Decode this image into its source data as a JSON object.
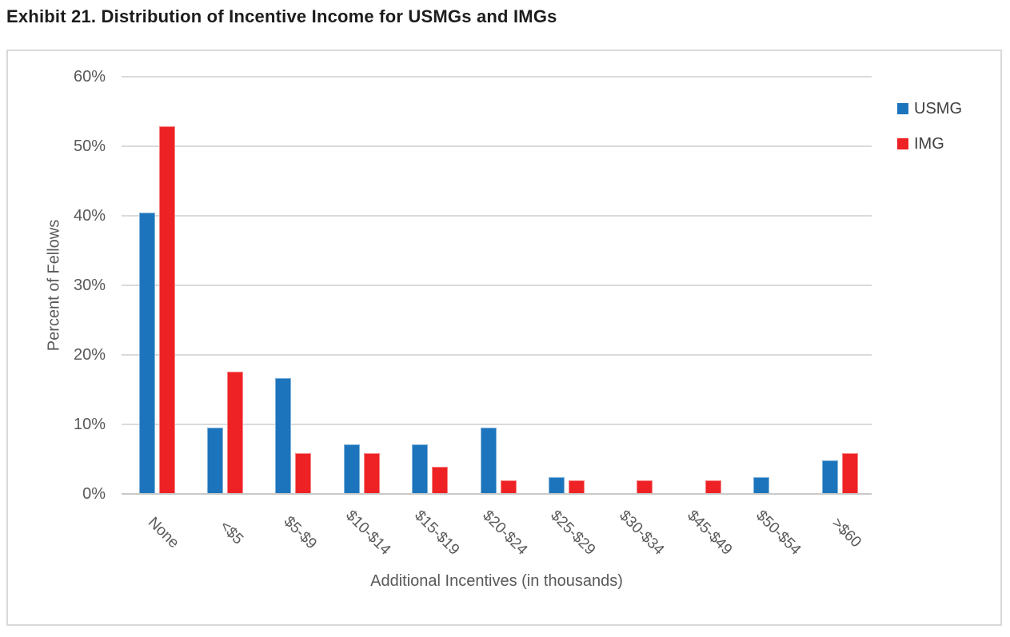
{
  "title": "Exhibit 21. Distribution of Incentive Income for USMGs and IMGs",
  "colors": {
    "usmg_blue": "#1C75BC",
    "img_red": "#EE2224",
    "gridline": "#DADADA",
    "axis_line": "#C9C9C9",
    "axis_text": "#595959",
    "legend_text": "#404040",
    "title_text": "#1D1D1F",
    "chart_border": "#D9D9D9",
    "background": "#FFFFFF"
  },
  "chart_data": {
    "type": "bar",
    "title": "Exhibit 21. Distribution of Incentive Income for USMGs and IMGs",
    "xlabel": "Additional Incentives (in thousands)",
    "ylabel": "Percent of Fellows",
    "categories": [
      "None",
      "<$5",
      "$5-$9",
      "$10-$14",
      "$15-$19",
      "$20-$24",
      "$25-$29",
      "$30-$34",
      "$45-$49",
      "$50-$54",
      ">$60"
    ],
    "series": [
      {
        "name": "USMG",
        "color": "#1C75BC",
        "values": [
          40.5,
          9.5,
          16.7,
          7.1,
          7.1,
          9.5,
          2.4,
          0,
          0,
          2.4,
          4.8
        ]
      },
      {
        "name": "IMG",
        "color": "#EE2224",
        "values": [
          52.9,
          17.6,
          5.9,
          5.9,
          3.9,
          2.0,
          2.0,
          2.0,
          2.0,
          0,
          5.9
        ]
      }
    ],
    "ylim": [
      0,
      60
    ],
    "ytick_step": 10,
    "ytick_labels": [
      "0%",
      "10%",
      "20%",
      "30%",
      "40%",
      "50%",
      "60%"
    ],
    "grid": "horizontal",
    "legend_position": "right"
  }
}
